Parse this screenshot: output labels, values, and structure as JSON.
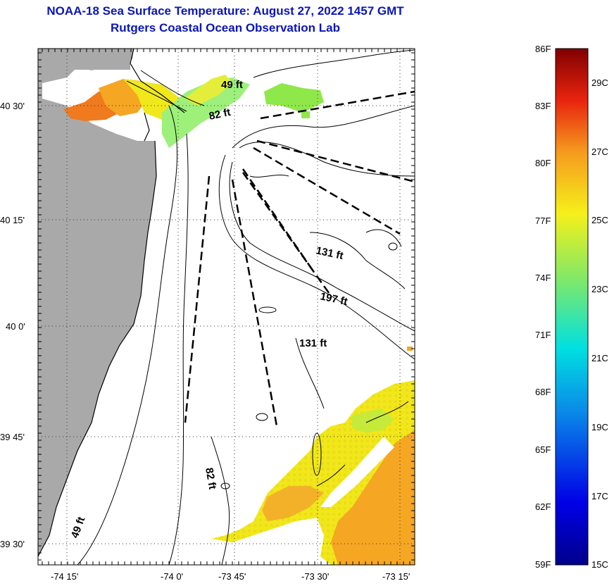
{
  "title": {
    "line1": "NOAA-18 Sea Surface Temperature:  August 27, 2022 1457 GMT",
    "line2": "Rutgers Coastal Ocean Observation Lab"
  },
  "map": {
    "lat_labels": [
      "40 30'",
      "40 15'",
      "40 0'",
      "39 45'",
      "39 30'"
    ],
    "lon_labels": [
      "-74 15'",
      "-74 0'",
      "-73 45'",
      "-73 30'",
      "-73 15'"
    ],
    "depth_labels": [
      "49 ft",
      "82 ft",
      "131 ft",
      "197 ft",
      "131 ft",
      "82 ft",
      "49 ft"
    ],
    "colors": {
      "land": "#a9a9a9",
      "warm": "#f07a1e",
      "orange": "#f5a623",
      "yellow": "#f0e81a",
      "green": "#8fe84a",
      "lightgreen": "#9df07a"
    }
  },
  "colorbar": {
    "f_labels": [
      "86F",
      "83F",
      "80F",
      "77F",
      "74F",
      "71F",
      "68F",
      "65F",
      "62F",
      "59F"
    ],
    "c_labels": [
      "29C",
      "27C",
      "25C",
      "23C",
      "21C",
      "19C",
      "17C",
      "15C"
    ]
  }
}
